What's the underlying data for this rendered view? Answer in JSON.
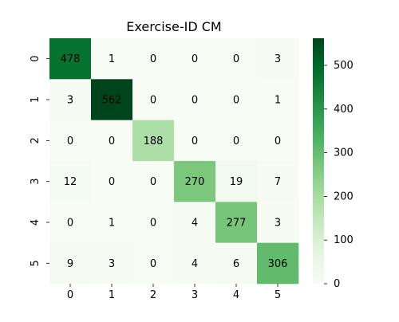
{
  "chart_data": {
    "type": "heatmap",
    "title": "Exercise-ID CM",
    "xlabel": "",
    "ylabel": "",
    "x_ticks": [
      "0",
      "1",
      "2",
      "3",
      "4",
      "5"
    ],
    "y_ticks": [
      "0",
      "1",
      "2",
      "3",
      "4",
      "5"
    ],
    "matrix": [
      [
        478,
        1,
        0,
        0,
        0,
        3
      ],
      [
        3,
        562,
        0,
        0,
        0,
        1
      ],
      [
        0,
        0,
        188,
        0,
        0,
        0
      ],
      [
        12,
        0,
        0,
        270,
        19,
        7
      ],
      [
        0,
        1,
        0,
        4,
        277,
        3
      ],
      [
        9,
        3,
        0,
        4,
        6,
        306
      ]
    ],
    "colormap": "Greens",
    "color_range": [
      0,
      562
    ],
    "colorbar_ticks": [
      0,
      100,
      200,
      300,
      400,
      500
    ],
    "colors": {
      "low": "#f7fcf5",
      "high": "#00441b",
      "text_dark": "#262626",
      "text_light": "#ffffff"
    }
  }
}
